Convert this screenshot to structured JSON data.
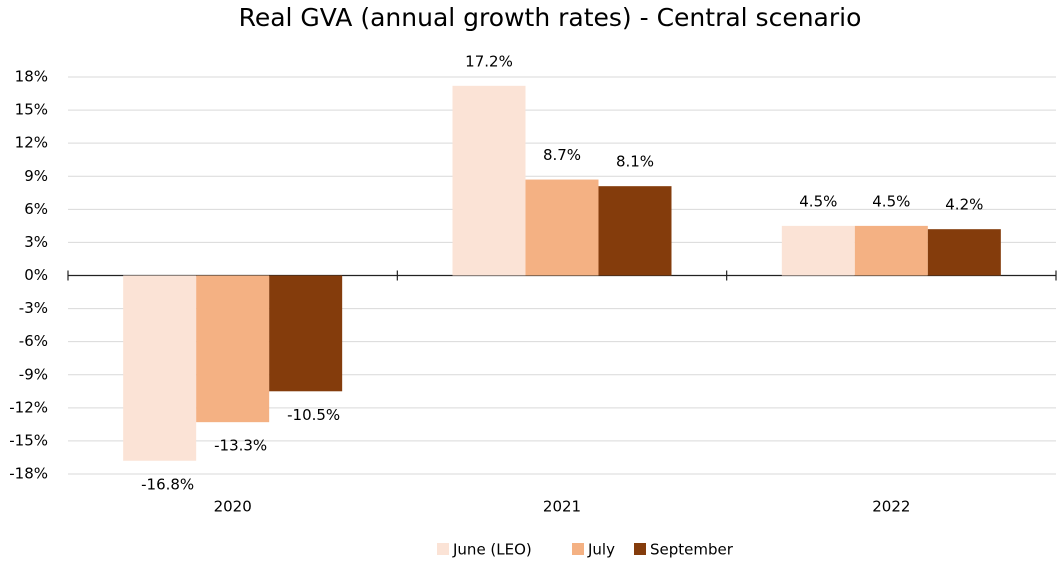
{
  "chart_data": {
    "type": "bar",
    "title": "Real GVA (annual growth rates) - Central scenario",
    "categories": [
      "2020",
      "2021",
      "2022"
    ],
    "series": [
      {
        "name": "June (LEO)",
        "color": "#FBE3D6",
        "values": [
          -16.8,
          17.2,
          4.5
        ],
        "value_labels": [
          "-16.8%",
          "17.2%",
          "4.5%"
        ]
      },
      {
        "name": "July",
        "color": "#F4B183",
        "values": [
          -13.3,
          8.7,
          4.5
        ],
        "value_labels": [
          "-13.3%",
          "8.7%",
          "4.5%"
        ]
      },
      {
        "name": "September",
        "color": "#843C0C",
        "values": [
          -10.5,
          8.1,
          4.2
        ],
        "value_labels": [
          "-10.5%",
          "8.1%",
          "4.2%"
        ]
      }
    ],
    "ylim": [
      -18,
      18
    ],
    "yticks": [
      {
        "value": -18,
        "label": "-18%"
      },
      {
        "value": -15,
        "label": "-15%"
      },
      {
        "value": -12,
        "label": "-12%"
      },
      {
        "value": -9,
        "label": "-9%"
      },
      {
        "value": -6,
        "label": "-6%"
      },
      {
        "value": -3,
        "label": "-3%"
      },
      {
        "value": 0,
        "label": "0%"
      },
      {
        "value": 3,
        "label": "3%"
      },
      {
        "value": 6,
        "label": "6%"
      },
      {
        "value": 9,
        "label": "9%"
      },
      {
        "value": 12,
        "label": "12%"
      },
      {
        "value": 15,
        "label": "15%"
      },
      {
        "value": 18,
        "label": "18%"
      }
    ],
    "grid": true,
    "legend": "bottom"
  }
}
